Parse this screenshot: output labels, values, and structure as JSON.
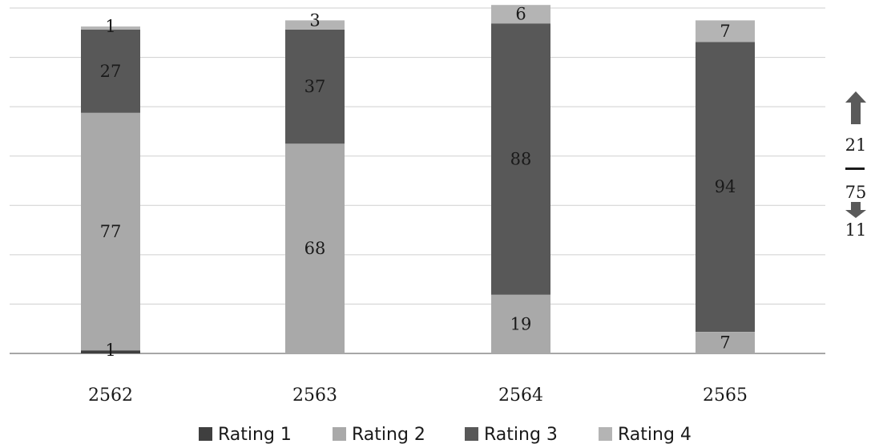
{
  "chart_data": {
    "type": "bar",
    "stacked": true,
    "categories": [
      "2562",
      "2563",
      "2564",
      "2565"
    ],
    "series": [
      {
        "name": "Rating 1",
        "values": [
          1,
          0,
          0,
          0
        ],
        "labels": [
          "1",
          "",
          "",
          ""
        ],
        "color": "#3f3f3f"
      },
      {
        "name": "Rating 2",
        "values": [
          77,
          68,
          19,
          7
        ],
        "labels": [
          "77",
          "68",
          "19",
          "7"
        ],
        "color": "#a9a9a9"
      },
      {
        "name": "Rating 3",
        "values": [
          27,
          37,
          88,
          94
        ],
        "labels": [
          "27",
          "37",
          "88",
          "94"
        ],
        "color": "#585858"
      },
      {
        "name": "Rating 4",
        "values": [
          1,
          3,
          6,
          7
        ],
        "labels": [
          "1",
          "3",
          "6",
          "7"
        ],
        "color": "#b4b4b4"
      }
    ],
    "ylim": [
      0,
      112
    ],
    "grid": true,
    "legend": "bottom",
    "title": "",
    "xlabel": "",
    "ylabel": ""
  },
  "side_summary": {
    "up_value": "21",
    "mid_value": "75",
    "down_value": "11",
    "up_icon": "arrow-up-icon",
    "down_icon": "arrow-down-icon",
    "color": "#5a5a5a"
  }
}
